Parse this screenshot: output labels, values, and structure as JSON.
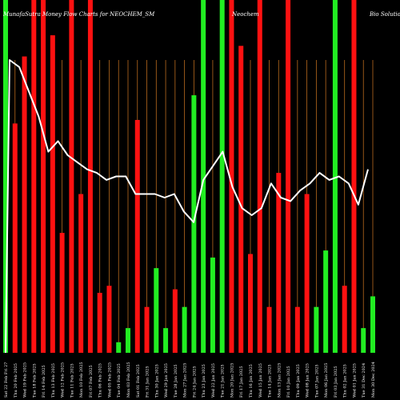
{
  "chart_data": {
    "type": "bar",
    "title_left": "MunafaSutra  Money Flow  Charts for NEOCHEM_SM",
    "title_mid": "Neochem",
    "title_right": "Bio  Solutions",
    "colors": {
      "background": "#000000",
      "up": "#22ee22",
      "down": "#ff1111",
      "line": "#ffffff",
      "grid": "#b86a1e"
    },
    "categories": [
      "Sat 22 Feb Fri 27",
      "Thu 20 Feb 2025",
      "Wed 19 Feb 2025",
      "Tue 18 Feb 2025",
      "Fri 14 Feb 2025",
      "Thu 13 Feb 2025",
      "Wed 12 Feb 2025",
      "Tue 11 Feb 2025",
      "Mon 10 Feb 2025",
      "Fri 07 Feb 2025",
      "Thu 06 Feb 2025",
      "Wed 05 Feb 2025",
      "Tue 04 Feb 2025",
      "Mon 03 Feb 2025",
      "Sat 01 Feb 2025",
      "Fri 31 Jan 2025",
      "Thu 30 Jan 2025",
      "Wed 29 Jan 2025",
      "Tue 28 Jan 2025",
      "Mon 27 Jan 2025",
      "Fri 24 Jan 2025",
      "Thu 23 Jan 2025",
      "Wed 22 Jan 2025",
      "Tue 21 Jan 2025",
      "Mon 20 Jan 2025",
      "Fri 17 Jan 2025",
      "Thu 16 Jan 2025",
      "Wed 15 Jan 2025",
      "Tue 14 Jan 2025",
      "Mon 13 Jan 2025",
      "Fri 10 Jan 2025",
      "Thu 09 Jan 2025",
      "Wed 08 Jan 2025",
      "Tue 07 Jan 2025",
      "Mon 06 Jan 2025",
      "Fri 03 Jan 2025",
      "Thu 02 Jan 2025",
      "Wed 01 Jan 2025",
      "Tue 31 Dec 2024",
      "Mon 30 Dec 2024"
    ],
    "bar_colors": [
      "green",
      "red",
      "red",
      "red",
      "red",
      "red",
      "red",
      "red",
      "red",
      "red",
      "red",
      "red",
      "green",
      "green",
      "red",
      "red",
      "green",
      "green",
      "red",
      "green",
      "green",
      "green",
      "green",
      "green",
      "red",
      "red",
      "red",
      "red",
      "red",
      "red",
      "red",
      "red",
      "red",
      "green",
      "green",
      "green",
      "red",
      "red",
      "green",
      "green"
    ],
    "bar_values": [
      100,
      65,
      84,
      100,
      100,
      90,
      34,
      100,
      45,
      100,
      17,
      19,
      3,
      7,
      66,
      13,
      24,
      7,
      18,
      13,
      73,
      100,
      27,
      100,
      100,
      87,
      28,
      100,
      13,
      51,
      100,
      13,
      45,
      13,
      29,
      100,
      19,
      100,
      7,
      16
    ],
    "line_values": [
      83,
      81,
      74,
      67,
      57,
      60,
      56,
      54,
      52,
      51,
      49,
      50,
      50,
      45,
      45,
      45,
      44,
      45,
      40,
      37,
      49,
      53,
      57,
      47,
      41,
      39,
      41,
      48,
      44,
      43,
      46,
      48,
      51,
      49,
      50,
      48,
      42,
      52
    ],
    "ylim": [
      0,
      100
    ]
  }
}
